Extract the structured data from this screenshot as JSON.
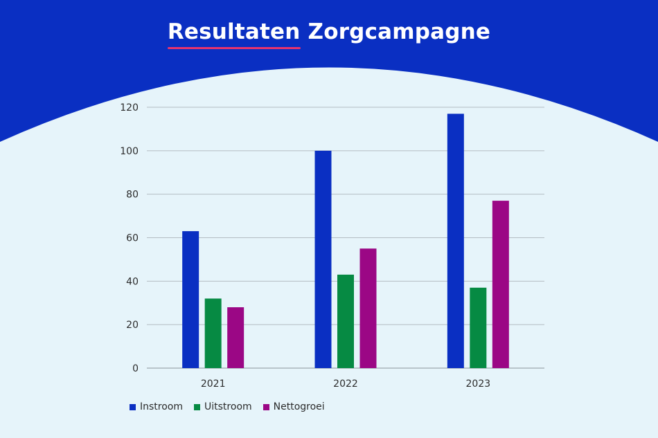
{
  "title": {
    "highlight": "Resultaten",
    "rest": "Zorgcampagne"
  },
  "colors": {
    "header_bg": "#0a2fc2",
    "page_bg": "#e6f4fa",
    "underline": "#e8336e"
  },
  "chart_data": {
    "type": "bar",
    "categories": [
      "2021",
      "2022",
      "2023"
    ],
    "series": [
      {
        "name": "Instroom",
        "color": "#0a2fc2",
        "values": [
          63,
          100,
          117
        ]
      },
      {
        "name": "Uitstroom",
        "color": "#068a43",
        "values": [
          32,
          43,
          37
        ]
      },
      {
        "name": "Nettogroei",
        "color": "#9b0785",
        "values": [
          28,
          55,
          77
        ]
      }
    ],
    "yticks": [
      "0",
      "20",
      "40",
      "60",
      "80",
      "100",
      "120"
    ],
    "ylim": [
      0,
      120
    ],
    "grid": true,
    "legend_position": "bottom-left"
  }
}
